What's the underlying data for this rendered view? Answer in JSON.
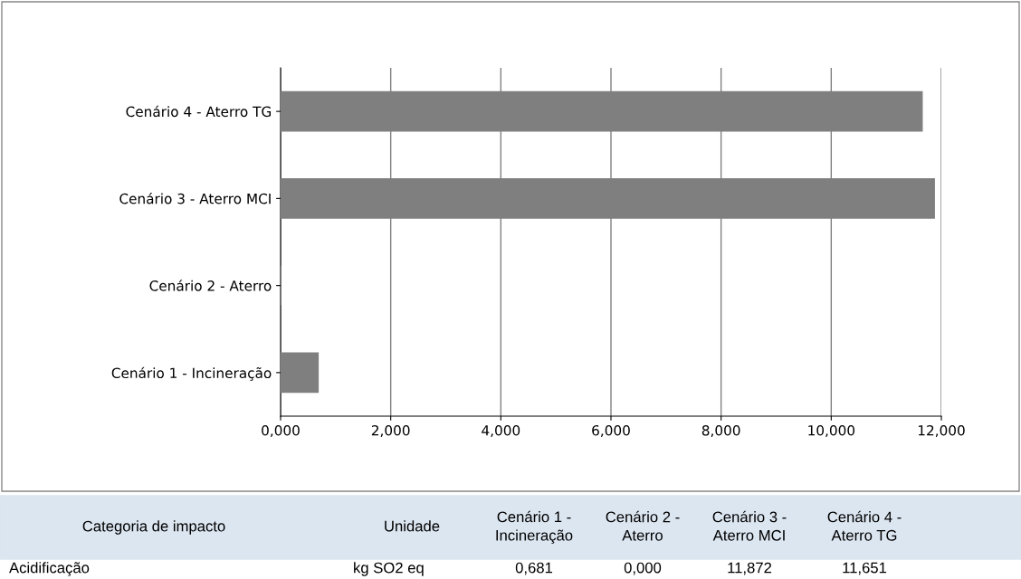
{
  "chart_data": {
    "type": "bar",
    "orientation": "horizontal",
    "categories": [
      "Cenário 4 - Aterro TG",
      "Cenário 3 - Aterro MCI",
      "Cenário 2 - Aterro",
      "Cenário 1 - Incineração"
    ],
    "values": [
      11.651,
      11.872,
      0.0,
      0.681
    ],
    "color": "#7f7f7f",
    "xlim": [
      0,
      12
    ],
    "xticks": [
      {
        "value": 0,
        "label": "0,000"
      },
      {
        "value": 2,
        "label": "2,000"
      },
      {
        "value": 4,
        "label": "4,000"
      },
      {
        "value": 6,
        "label": "6,000"
      },
      {
        "value": 8,
        "label": "8,000"
      },
      {
        "value": 10,
        "label": "10,000"
      },
      {
        "value": 12,
        "label": "12,000"
      }
    ],
    "grid": "x",
    "annotations": [
      "Categoria de impacto",
      "Unidade",
      "Acidificação",
      "kg SO2 eq",
      "0,681",
      "0,000",
      "11,872",
      "11,651"
    ]
  }
}
